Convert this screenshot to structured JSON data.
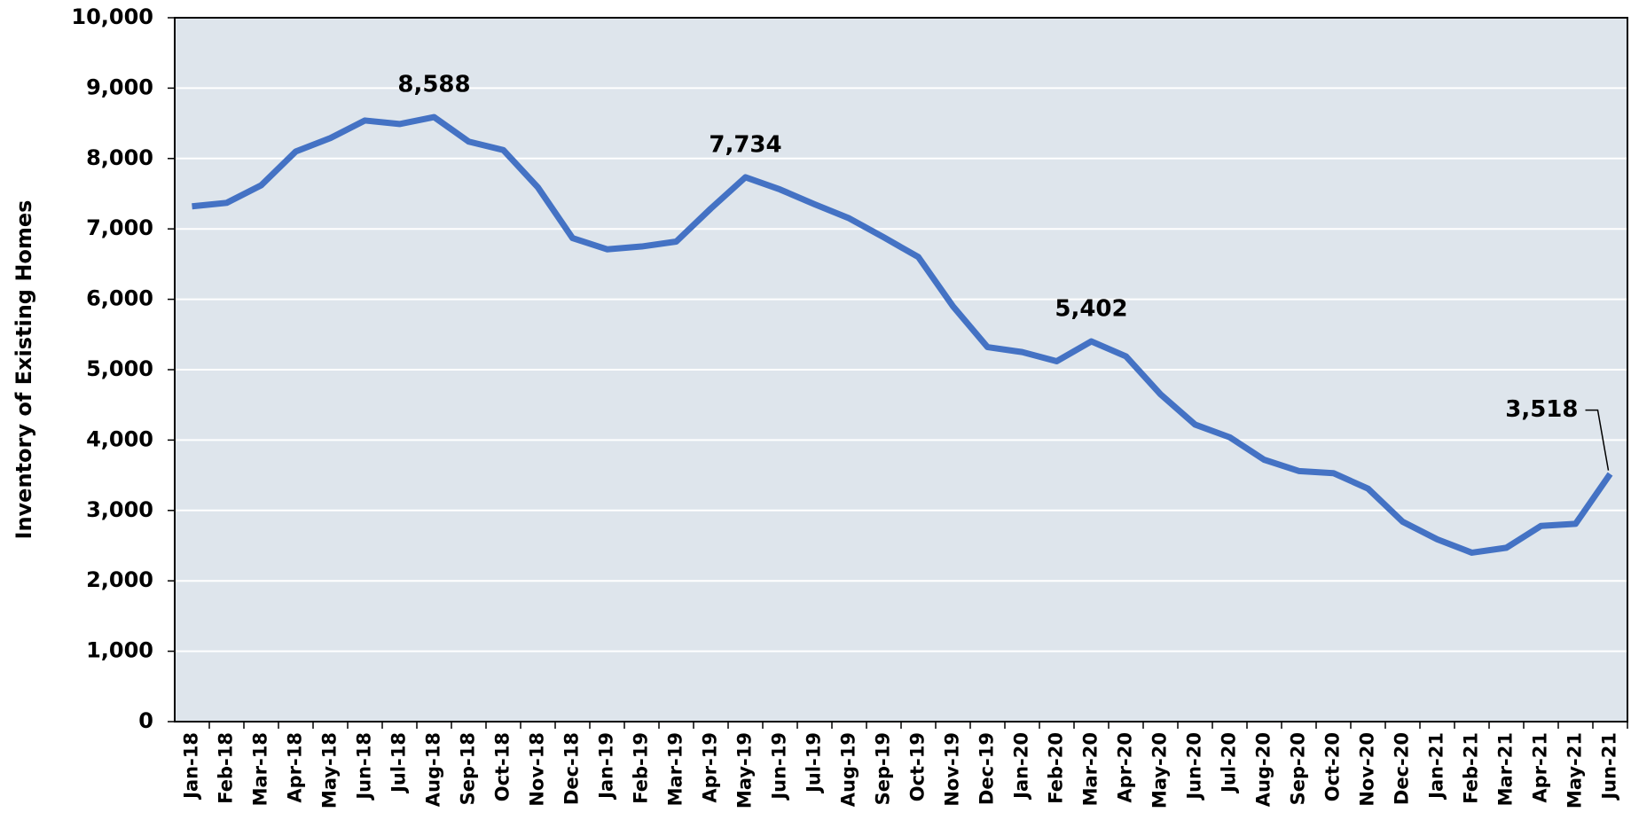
{
  "chart_data": {
    "type": "line",
    "y_label": "Inventory of Existing Homes",
    "categories": [
      "Jan-18",
      "Feb-18",
      "Mar-18",
      "Apr-18",
      "May-18",
      "Jun-18",
      "Jul-18",
      "Aug-18",
      "Sep-18",
      "Oct-18",
      "Nov-18",
      "Dec-18",
      "Jan-19",
      "Feb-19",
      "Mar-19",
      "Apr-19",
      "May-19",
      "Jun-19",
      "Jul-19",
      "Aug-19",
      "Sep-19",
      "Oct-19",
      "Nov-19",
      "Dec-19",
      "Jan-20",
      "Feb-20",
      "Mar-20",
      "Apr-20",
      "May-20",
      "Jun-20",
      "Jul-20",
      "Aug-20",
      "Sep-20",
      "Oct-20",
      "Nov-20",
      "Dec-20",
      "Jan-21",
      "Feb-21",
      "Mar-21",
      "Apr-21",
      "May-21",
      "Jun-21"
    ],
    "values": [
      7320,
      7370,
      7620,
      8100,
      8290,
      8540,
      8490,
      8588,
      8240,
      8120,
      7590,
      6870,
      6710,
      6750,
      6820,
      7290,
      7734,
      7560,
      7350,
      7150,
      6880,
      6600,
      5900,
      5320,
      5250,
      5120,
      5402,
      5190,
      4650,
      4220,
      4040,
      3720,
      3560,
      3530,
      3310,
      2840,
      2590,
      2400,
      2470,
      2780,
      2810,
      3518
    ],
    "value_labels": [
      null,
      null,
      null,
      null,
      null,
      null,
      null,
      "8,588",
      null,
      null,
      null,
      null,
      null,
      null,
      null,
      null,
      "7,734",
      null,
      null,
      null,
      null,
      null,
      null,
      null,
      null,
      null,
      "5,402",
      null,
      null,
      null,
      null,
      null,
      null,
      null,
      null,
      null,
      null,
      null,
      null,
      null,
      null,
      "3,518"
    ],
    "color": "#4472c4",
    "ylim": [
      0,
      10000
    ],
    "yticks": [
      0,
      {
        "value": 1000,
        "label": "1,000"
      },
      {
        "value": 2000,
        "label": "2,000"
      },
      {
        "value": 3000,
        "label": "3,000"
      },
      {
        "value": 4000,
        "label": "4,000"
      },
      {
        "value": 5000,
        "label": "5,000"
      },
      {
        "value": 6000,
        "label": "6,000"
      },
      {
        "value": 7000,
        "label": "7,000"
      },
      {
        "value": 8000,
        "label": "8,000"
      },
      {
        "value": 9000,
        "label": "9,000"
      },
      {
        "value": 10000,
        "label": "10,000"
      }
    ],
    "grid": true
  }
}
